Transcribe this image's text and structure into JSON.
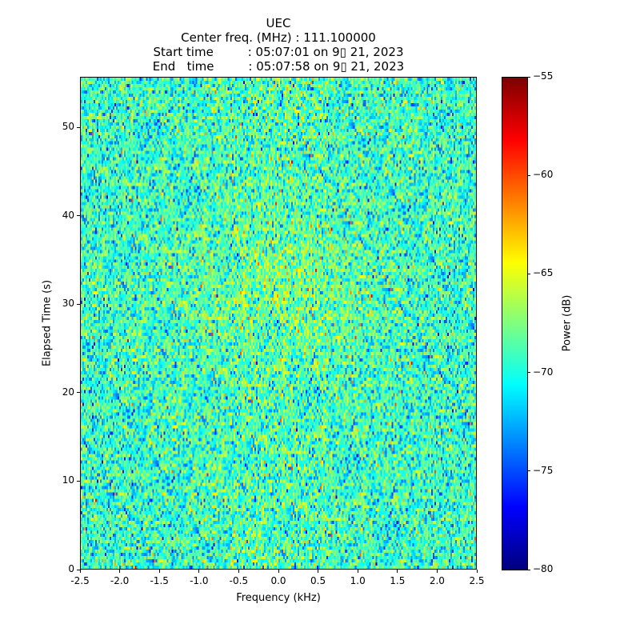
{
  "chart_data": {
    "type": "heatmap",
    "title_lines": [
      "UEC",
      "Center freq. (MHz) : 111.100000",
      "Start time         : 05:07:01 on 9▯ 21, 2023",
      "End   time         : 05:07:58 on 9▯ 21, 2023"
    ],
    "xlabel": "Frequency (kHz)",
    "ylabel": "Elapsed Time (s)",
    "xlim": [
      -2.5,
      2.5
    ],
    "ylim": [
      0,
      55.7
    ],
    "xticks": [
      "-2.5",
      "-2.0",
      "-1.5",
      "-1.0",
      "-0.5",
      "0.0",
      "0.5",
      "1.0",
      "1.5",
      "2.0",
      "2.5"
    ],
    "yticks": [
      "0",
      "10",
      "20",
      "30",
      "40",
      "50"
    ],
    "colorbar": {
      "label": "Power (dB)",
      "range": [
        -80,
        -55
      ],
      "ticks": [
        "−80",
        "−75",
        "−70",
        "−65",
        "−60",
        "−55"
      ],
      "colormap": "jet"
    },
    "data_description_mean_db": -69.5
  }
}
